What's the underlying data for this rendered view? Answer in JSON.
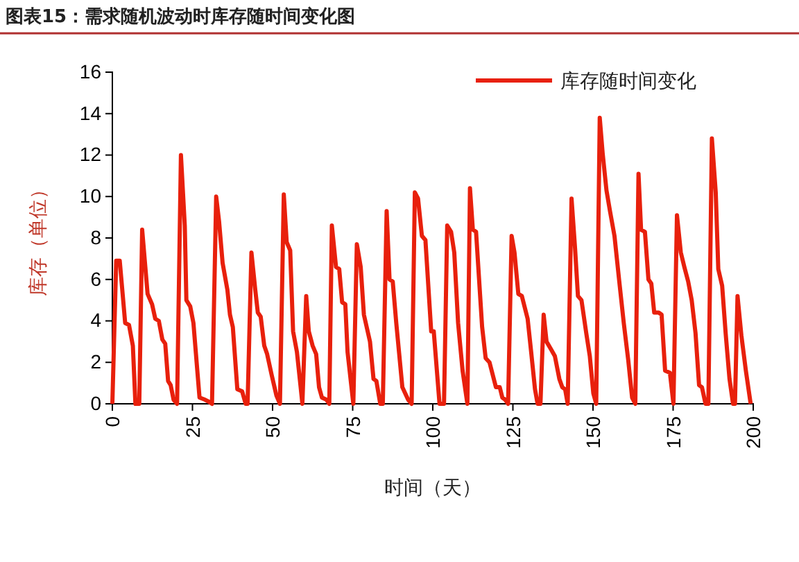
{
  "chart_data": {
    "type": "line",
    "title": "图表15：需求随机波动时库存随时间变化图",
    "xlabel": "时间（天）",
    "ylabel": "库存（单位）",
    "xlim": [
      0,
      200
    ],
    "xticks": [
      0,
      25,
      50,
      75,
      100,
      125,
      150,
      175,
      200
    ],
    "ylim": [
      0,
      16
    ],
    "yticks": [
      0,
      2,
      4,
      6,
      8,
      10,
      12,
      14,
      16
    ],
    "grid": false,
    "legend": "top right",
    "marker": "none",
    "line_style": "solid",
    "series": [
      {
        "name": "库存随时间变化",
        "color": "#e8200c",
        "x": [
          0,
          1.2,
          2.3,
          4,
          5.2,
          6.4,
          7.2,
          8.4,
          9.3,
          11,
          12.4,
          13.4,
          14.5,
          15.6,
          16.5,
          17.4,
          18.2,
          19.1,
          20.2,
          21.4,
          22.6,
          23.1,
          24.3,
          25.3,
          26.3,
          27.2,
          28.9,
          30.1,
          31.1,
          32.4,
          33.3,
          34.4,
          35.9,
          36.7,
          37.6,
          39,
          40.5,
          41.6,
          42.2,
          43.4,
          44.6,
          45.4,
          46.3,
          47.4,
          48.3,
          49.7,
          51.2,
          52.3,
          53.5,
          54.4,
          55.5,
          56.4,
          57.6,
          58.7,
          59.3,
          60.5,
          61.3,
          62.5,
          63.6,
          64.5,
          65.4,
          66.8,
          67.7,
          68.5,
          69.8,
          70.8,
          71.7,
          72.7,
          73.4,
          75.2,
          76.3,
          77.5,
          78.5,
          80.4,
          81.5,
          82.4,
          83.6,
          84.4,
          85.6,
          86.5,
          87.5,
          88.6,
          90.5,
          92.3,
          93.4,
          94.4,
          95.4,
          96.6,
          97.7,
          99.5,
          100.3,
          102.1,
          103.5,
          104.5,
          105.7,
          106.7,
          107.9,
          109.3,
          110.8,
          111.6,
          112.5,
          113.5,
          115.4,
          116.5,
          117.7,
          119.7,
          120.9,
          121.7,
          122.6,
          123.5,
          124.6,
          125.5,
          126.7,
          127.8,
          129.6,
          130.7,
          131.9,
          132.7,
          133.6,
          134.6,
          135.5,
          137,
          138.1,
          139.5,
          140.4,
          141.3,
          142.1,
          143.3,
          144.4,
          145.3,
          146.4,
          147.9,
          149,
          150.1,
          151,
          152.1,
          153,
          154.2,
          155.3,
          156.7,
          158.2,
          159.6,
          161,
          162.2,
          163.2,
          164.2,
          165,
          166.2,
          167.3,
          168.2,
          169.1,
          170.5,
          171.4,
          172.5,
          174,
          175.1,
          176.2,
          177.4,
          178.5,
          179.7,
          180.8,
          182,
          183.1,
          184,
          185.1,
          186,
          187.1,
          188.3,
          189.1,
          190.3,
          191.4,
          192.6,
          193.7,
          194.3,
          195.1,
          196.3,
          197.7,
          199.2
        ],
        "values": [
          0,
          6.9,
          6.9,
          3.9,
          3.8,
          2.8,
          0,
          0,
          8.4,
          5.3,
          4.8,
          4.1,
          4,
          3.1,
          2.9,
          1.1,
          0.9,
          0.2,
          0,
          12,
          8.6,
          5,
          4.7,
          3.9,
          2,
          0.3,
          0.2,
          0.1,
          0,
          10,
          8.8,
          6.8,
          5.5,
          4.3,
          3.7,
          0.7,
          0.6,
          0,
          0,
          7.3,
          5.5,
          4.4,
          4.2,
          2.8,
          2.4,
          1.4,
          0.4,
          0,
          10.1,
          7.8,
          7.4,
          3.5,
          2.5,
          0.9,
          0,
          5.2,
          3.5,
          2.8,
          2.4,
          0.8,
          0.3,
          0.2,
          0,
          8.6,
          6.6,
          6.5,
          4.9,
          4.8,
          2.5,
          0,
          7.7,
          6.6,
          4.3,
          3,
          1.2,
          1.1,
          0,
          0,
          9.3,
          6,
          5.9,
          3.9,
          0.8,
          0.2,
          0,
          10.2,
          9.9,
          8.1,
          7.9,
          3.5,
          3.5,
          0,
          0,
          8.6,
          8.3,
          7.3,
          3.9,
          1.6,
          0,
          10.4,
          8.4,
          8.3,
          3.7,
          2.2,
          2,
          0.8,
          0.8,
          0.3,
          0.2,
          0,
          8.1,
          7.3,
          5.3,
          5.2,
          4.1,
          2.5,
          0.7,
          0,
          0,
          4.3,
          3,
          2.6,
          2.3,
          1.2,
          0.8,
          0.7,
          0,
          9.9,
          7.5,
          5.2,
          5,
          3.4,
          2.3,
          0.5,
          0,
          13.8,
          12.1,
          10.3,
          9.3,
          8.1,
          5.9,
          3.9,
          2.1,
          0.3,
          0,
          11.1,
          8.4,
          8.3,
          6,
          5.8,
          4.4,
          4.4,
          4.3,
          1.6,
          1.5,
          0,
          9.1,
          7.3,
          6.6,
          5.9,
          5,
          3.4,
          0.9,
          0.8,
          0,
          0,
          12.8,
          10.2,
          6.5,
          5.7,
          3.4,
          1.2,
          0,
          0,
          5.2,
          3.3,
          1.6,
          0
        ]
      }
    ]
  }
}
